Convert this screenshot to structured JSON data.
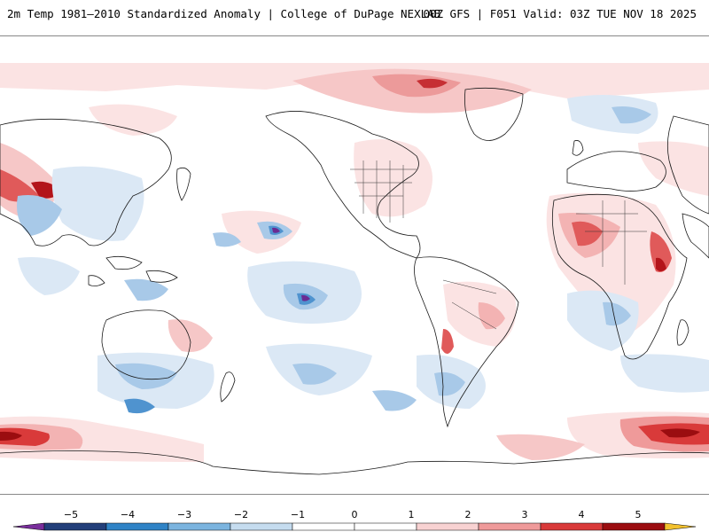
{
  "header": {
    "title_left": "2m Temp 1981–2010 Standardized Anomaly | College of DuPage NEXLAB",
    "title_right": "00Z GFS | F051 Valid: 03Z TUE NOV 18 2025"
  },
  "legend": {
    "ticks": [
      "−5",
      "−4",
      "−3",
      "−2",
      "−1",
      "0",
      "1",
      "2",
      "3",
      "4",
      "5"
    ],
    "colors": [
      "#7a2e9c",
      "#233f7a",
      "#2f83c6",
      "#7bb4df",
      "#c5dcef",
      "#ffffff",
      "#ffffff",
      "#f8d2d2",
      "#ef9a9a",
      "#d93a3a",
      "#9b0d10",
      "#f2c12e"
    ]
  },
  "map": {
    "projection": "equirectangular, Pacific-centered",
    "colors": {
      "weak_warm": "#fbe3e3",
      "warm": "#f3b3b3",
      "strong_warm": "#e05a5a",
      "extreme_warm": "#b3141a",
      "weak_cold": "#dbe8f5",
      "cold": "#a8c9e8",
      "strong_cold": "#4f93cf",
      "extreme_cold": "#6a2b93",
      "coast": "#1a1a1a"
    }
  }
}
